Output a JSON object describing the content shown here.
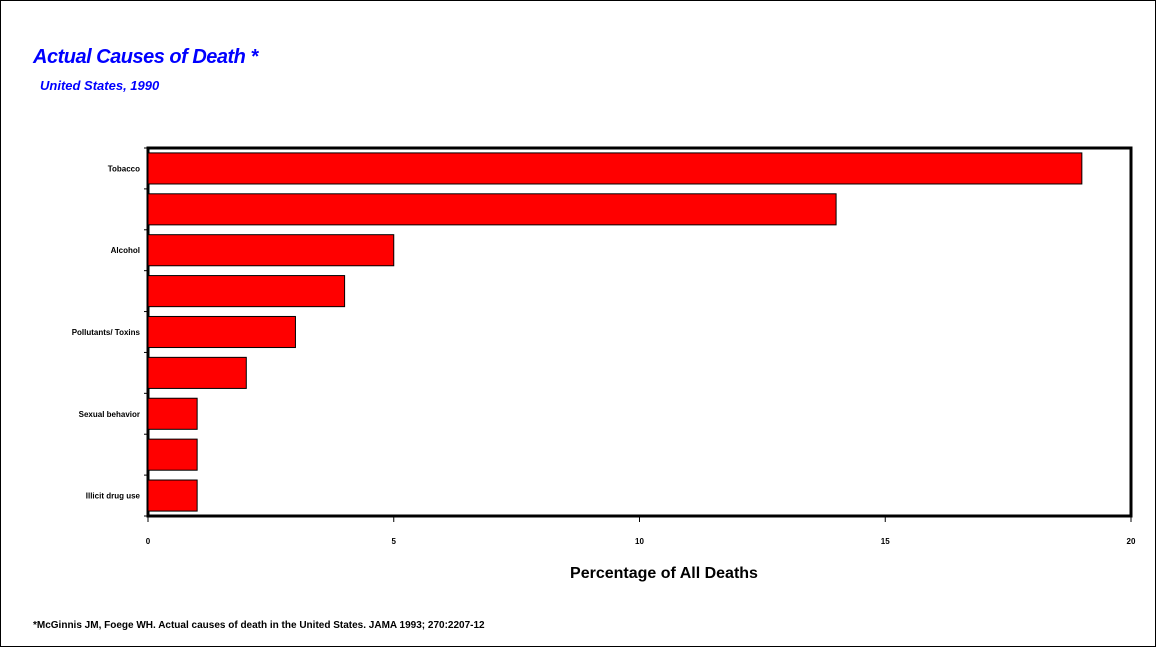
{
  "chart_data": {
    "type": "bar",
    "orientation": "horizontal",
    "title": "Actual Causes of Death *",
    "subtitle": "United States, 1990",
    "xlabel": "Percentage of All Deaths",
    "ylabel": "",
    "categories": [
      "Tobacco",
      "",
      "Alcohol",
      "",
      "Pollutants/ Toxins",
      "",
      "Sexual behavior",
      "",
      "Illicit drug use"
    ],
    "values": [
      19,
      14,
      5,
      4,
      3,
      2,
      1,
      1,
      1
    ],
    "xlim": [
      0,
      20
    ],
    "xticks": [
      "0",
      "5",
      "10",
      "15",
      "20"
    ],
    "bar_color": "#ff0000",
    "grid": false,
    "legend": "none"
  },
  "footnote": "*McGinnis JM, Foege WH. Actual causes of death in the United States. JAMA 1993; 270:2207-12"
}
